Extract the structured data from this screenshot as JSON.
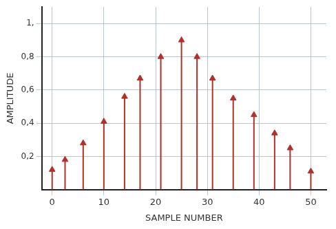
{
  "chart_data": {
    "type": "stem",
    "x_label": "SAMPLE NUMBER",
    "y_label": "AMPLITUDE",
    "x": [
      0,
      2.5,
      6,
      10,
      14,
      17,
      21,
      25,
      28,
      31,
      35,
      39,
      43,
      46,
      50
    ],
    "values": [
      0.12,
      0.18,
      0.28,
      0.41,
      0.56,
      0.67,
      0.8,
      0.9,
      0.8,
      0.67,
      0.55,
      0.45,
      0.34,
      0.25,
      0.11
    ],
    "color": "#b0302a",
    "marker": "arrow",
    "xlim": [
      -2,
      53
    ],
    "xticks": [
      0,
      10,
      20,
      30,
      40,
      50
    ],
    "ylim": [
      0,
      1.1
    ],
    "yticks": [
      {
        "value": 0.2,
        "label": "0,2"
      },
      {
        "value": 0.4,
        "label": "0,4"
      },
      {
        "value": 0.6,
        "label": "0,6"
      },
      {
        "value": 0.8,
        "label": "0,8"
      },
      {
        "value": 1,
        "label": "1,"
      }
    ],
    "grid": true
  }
}
